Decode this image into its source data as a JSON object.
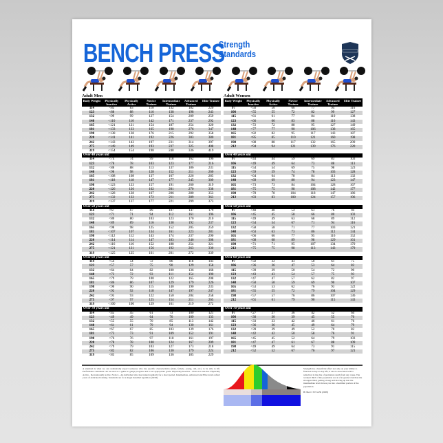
{
  "title": {
    "main": "BENCH PRESS",
    "sub_line1": "Strength",
    "sub_line2": "Standards",
    "color": "#1565d8"
  },
  "logo": {
    "text": "KILGORE",
    "color": "#1d3557"
  },
  "columns": [
    "Body Weight",
    "Physically Inactive",
    "Physically Active",
    "Novice Trainee",
    "Intermediate Trainee",
    "Advanced Trainee",
    "Elite Trainee"
  ],
  "men": {
    "title": "Adult Men",
    "sections": [
      {
        "label": "",
        "rows": [
          [
            "114",
            "<83",
            "83",
            "110",
            "132",
            "182",
            "220"
          ],
          [
            "123",
            "<88",
            "88",
            "116",
            "138",
            "198",
            "243"
          ],
          [
            "132",
            "<99",
            "99",
            "127",
            "154",
            "209",
            "259"
          ],
          [
            "148",
            "<110",
            "110",
            "142",
            "171",
            "237",
            "292"
          ],
          [
            "165",
            "<121",
            "121",
            "154",
            "187",
            "254",
            "320"
          ],
          [
            "181",
            "<133",
            "133",
            "165",
            "198",
            "276",
            "347"
          ],
          [
            "198",
            "<138",
            "138",
            "176",
            "215",
            "292",
            "358"
          ],
          [
            "220",
            "<141",
            "141",
            "192",
            "226",
            "303",
            "380"
          ],
          [
            "242",
            "<143",
            "143",
            "197",
            "231",
            "314",
            "397"
          ],
          [
            "275",
            "<149",
            "149",
            "193",
            "237",
            "325",
            "408"
          ],
          [
            "319",
            "<154",
            "154",
            "198",
            "248",
            "336",
            "419"
          ]
        ]
      },
      {
        "label": "Over 40 years old",
        "rows": [
          [
            "114",
            "<74",
            "74",
            "99",
            "118",
            "162",
            "196"
          ],
          [
            "123",
            "<78",
            "78",
            "103",
            "123",
            "177",
            "216"
          ],
          [
            "132",
            "<88",
            "88",
            "113",
            "137",
            "186",
            "231"
          ],
          [
            "148",
            "<98",
            "98",
            "128",
            "152",
            "211",
            "260"
          ],
          [
            "165",
            "<108",
            "108",
            "137",
            "167",
            "226",
            "285"
          ],
          [
            "181",
            "<118",
            "118",
            "147",
            "177",
            "245",
            "309"
          ],
          [
            "198",
            "<123",
            "123",
            "157",
            "191",
            "260",
            "319"
          ],
          [
            "220",
            "<126",
            "126",
            "162",
            "201",
            "270",
            "338"
          ],
          [
            "242",
            "<128",
            "128",
            "167",
            "206",
            "280",
            "353"
          ],
          [
            "275",
            "<132",
            "132",
            "172",
            "211",
            "289",
            "363"
          ],
          [
            "319",
            "<137",
            "137",
            "177",
            "221",
            "299",
            "373"
          ]
        ]
      },
      {
        "label": "Over 50 years old",
        "rows": [
          [
            "114",
            "<67",
            "67",
            "89",
            "107",
            "147",
            "179"
          ],
          [
            "123",
            "<71",
            "71",
            "94",
            "112",
            "161",
            "196"
          ],
          [
            "132",
            "<80",
            "80",
            "103",
            "123",
            "170",
            "210"
          ],
          [
            "148",
            "<89",
            "89",
            "116",
            "138",
            "192",
            "237"
          ],
          [
            "165",
            "<98",
            "98",
            "125",
            "152",
            "205",
            "259"
          ],
          [
            "181",
            "<107",
            "107",
            "134",
            "161",
            "223",
            "281"
          ],
          [
            "198",
            "<112",
            "112",
            "143",
            "174",
            "237",
            "290"
          ],
          [
            "220",
            "<114",
            "114",
            "147",
            "183",
            "246",
            "308"
          ],
          [
            "242",
            "<116",
            "116",
            "152",
            "188",
            "254",
            "321"
          ],
          [
            "275",
            "<121",
            "121",
            "156",
            "192",
            "263",
            "330"
          ],
          [
            "319",
            "<125",
            "125",
            "161",
            "201",
            "272",
            "339"
          ]
        ]
      },
      {
        "label": "Over 60 years old",
        "rows": [
          [
            "114",
            "<54",
            "54",
            "72",
            "86",
            "118",
            "143"
          ],
          [
            "123",
            "<57",
            "57",
            "75",
            "90",
            "129",
            "158"
          ],
          [
            "132",
            "<64",
            "64",
            "82",
            "100",
            "136",
            "168"
          ],
          [
            "148",
            "<72",
            "72",
            "93",
            "111",
            "154",
            "190"
          ],
          [
            "165",
            "<79",
            "79",
            "100",
            "122",
            "165",
            "208"
          ],
          [
            "181",
            "<86",
            "86",
            "107",
            "129",
            "179",
            "226"
          ],
          [
            "198",
            "<90",
            "90",
            "115",
            "140",
            "190",
            "233"
          ],
          [
            "220",
            "<92",
            "92",
            "118",
            "147",
            "197",
            "247"
          ],
          [
            "242",
            "<93",
            "93",
            "122",
            "150",
            "204",
            "258"
          ],
          [
            "275",
            "<97",
            "97",
            "125",
            "154",
            "211",
            "265"
          ],
          [
            "319",
            "<100",
            "100",
            "129",
            "161",
            "219",
            "272"
          ]
        ]
      },
      {
        "label": "Over 70 years old",
        "rows": [
          [
            "114",
            "<45",
            "45",
            "61",
            "73",
            "100",
            "121"
          ],
          [
            "123",
            "<49",
            "49",
            "64",
            "76",
            "109",
            "133"
          ],
          [
            "132",
            "<55",
            "55",
            "70",
            "85",
            "113",
            "142"
          ],
          [
            "148",
            "<61",
            "61",
            "79",
            "94",
            "130",
            "161"
          ],
          [
            "165",
            "<67",
            "67",
            "85",
            "103",
            "139",
            "176"
          ],
          [
            "181",
            "<73",
            "73",
            "91",
            "109",
            "152",
            "191"
          ],
          [
            "198",
            "<76",
            "76",
            "97",
            "118",
            "161",
            "197"
          ],
          [
            "220",
            "<78",
            "78",
            "100",
            "124",
            "167",
            "209"
          ],
          [
            "242",
            "<79",
            "79",
            "103",
            "127",
            "173",
            "218"
          ],
          [
            "275",
            "<82",
            "82",
            "106",
            "130",
            "179",
            "224"
          ],
          [
            "319",
            "<85",
            "85",
            "109",
            "136",
            "185",
            "229"
          ]
        ]
      }
    ]
  },
  "women": {
    "title": "Adult Women",
    "sections": [
      {
        "label": "",
        "rows": [
          [
            "97",
            "<50",
            "50",
            "66",
            "77",
            "94",
            "116"
          ],
          [
            "106",
            "<55",
            "55",
            "72",
            "82",
            "99",
            "127"
          ],
          [
            "115",
            "<61",
            "61",
            "77",
            "84",
            "110",
            "138"
          ],
          [
            "123",
            "<66",
            "66",
            "83",
            "88",
            "116",
            "143"
          ],
          [
            "132",
            "<72",
            "72",
            "88",
            "95",
            "127",
            "149"
          ],
          [
            "148",
            "<77",
            "77",
            "90",
            "106",
            "138",
            "165"
          ],
          [
            "165",
            "<82",
            "82",
            "95",
            "117",
            "143",
            "187"
          ],
          [
            "181",
            "<85",
            "85",
            "110",
            "121",
            "160",
            "198"
          ],
          [
            "198",
            "<88",
            "88",
            "117",
            "132",
            "165",
            "209"
          ],
          [
            "212",
            "<94",
            "94",
            "121",
            "139",
            "176",
            "220"
          ]
        ]
      },
      {
        "label": "Over 40 years old",
        "rows": [
          [
            "97",
            "<44",
            "44",
            "59",
            "69",
            "83",
            "103"
          ],
          [
            "106",
            "<49",
            "49",
            "64",
            "73",
            "88",
            "113"
          ],
          [
            "115",
            "<54",
            "54",
            "69",
            "75",
            "98",
            "123"
          ],
          [
            "123",
            "<59",
            "59",
            "74",
            "78",
            "103",
            "128"
          ],
          [
            "132",
            "<64",
            "64",
            "78",
            "84",
            "113",
            "132"
          ],
          [
            "148",
            "<69",
            "69",
            "80",
            "94",
            "123",
            "147"
          ],
          [
            "165",
            "<73",
            "73",
            "84",
            "104",
            "128",
            "167"
          ],
          [
            "181",
            "<75",
            "75",
            "98",
            "108",
            "142",
            "177"
          ],
          [
            "198",
            "<78",
            "78",
            "104",
            "118",
            "147",
            "186"
          ],
          [
            "212",
            "<83",
            "83",
            "108",
            "124",
            "157",
            "196"
          ]
        ]
      },
      {
        "label": "Over 50 years old",
        "rows": [
          [
            "97",
            "<40",
            "40",
            "54",
            "63",
            "76",
            "94"
          ],
          [
            "106",
            "<45",
            "45",
            "58",
            "66",
            "80",
            "103"
          ],
          [
            "115",
            "<49",
            "49",
            "63",
            "68",
            "89",
            "112"
          ],
          [
            "123",
            "<54",
            "54",
            "67",
            "71",
            "94",
            "116"
          ],
          [
            "132",
            "<58",
            "58",
            "71",
            "77",
            "103",
            "121"
          ],
          [
            "148",
            "<63",
            "63",
            "73",
            "86",
            "112",
            "134"
          ],
          [
            "165",
            "<66",
            "66",
            "77",
            "95",
            "116",
            "152"
          ],
          [
            "181",
            "<68",
            "68",
            "89",
            "98",
            "129",
            "161"
          ],
          [
            "198",
            "<71",
            "71",
            "95",
            "107",
            "134",
            "170"
          ],
          [
            "212",
            "<75",
            "75",
            "98",
            "113",
            "143",
            "179"
          ]
        ]
      },
      {
        "label": "Over 60 years old",
        "rows": [
          [
            "97",
            "<32",
            "32",
            "43",
            "50",
            "61",
            "75"
          ],
          [
            "106",
            "<36",
            "36",
            "47",
            "53",
            "64",
            "82"
          ],
          [
            "115",
            "<39",
            "39",
            "50",
            "54",
            "72",
            "90"
          ],
          [
            "123",
            "<43",
            "43",
            "54",
            "57",
            "75",
            "93"
          ],
          [
            "132",
            "<47",
            "47",
            "57",
            "62",
            "82",
            "97"
          ],
          [
            "148",
            "<50",
            "50",
            "59",
            "69",
            "90",
            "107"
          ],
          [
            "165",
            "<53",
            "53",
            "62",
            "76",
            "93",
            "122"
          ],
          [
            "181",
            "<55",
            "55",
            "72",
            "79",
            "104",
            "129"
          ],
          [
            "198",
            "<57",
            "57",
            "76",
            "86",
            "107",
            "136"
          ],
          [
            "212",
            "<61",
            "61",
            "79",
            "90",
            "115",
            "143"
          ]
        ]
      },
      {
        "label": "Over 70 years old",
        "rows": [
          [
            "97",
            "<27",
            "27",
            "36",
            "42",
            "52",
            "64"
          ],
          [
            "106",
            "<30",
            "30",
            "39",
            "45",
            "55",
            "70"
          ],
          [
            "115",
            "<33",
            "33",
            "42",
            "46",
            "61",
            "76"
          ],
          [
            "123",
            "<36",
            "36",
            "45",
            "49",
            "64",
            "79"
          ],
          [
            "132",
            "<39",
            "39",
            "49",
            "52",
            "70",
            "82"
          ],
          [
            "148",
            "<42",
            "42",
            "50",
            "58",
            "76",
            "91"
          ],
          [
            "165",
            "<45",
            "45",
            "52",
            "64",
            "79",
            "103"
          ],
          [
            "181",
            "<47",
            "47",
            "61",
            "67",
            "88",
            "109"
          ],
          [
            "198",
            "<49",
            "49",
            "64",
            "73",
            "91",
            "115"
          ],
          [
            "212",
            "<52",
            "52",
            "67",
            "76",
            "97",
            "121"
          ]
        ]
      }
    ]
  },
  "footer": {
    "left_text": "A standard is what we can realistically expect someone who has specific characteristics (male, female, young, old, etc.) to be able to lift. Performance standards can be used as a guide to gauge progress and to set appropriate goals. Physically Inactive - Does not exercise. Physically Active - Recreationally active. Novice - An individual who has trained regularly for a short period. Intermediate, Advanced and Elite levels reflect years of dedicated training. Standards are for a single maximal repetition (1RM).",
    "right_text": "Strength has a beneficial effect not only on your ability to function in day-to-day life, it also is associated with a reduction in the risk of premature death from any cause. The weakest third of the population are at a far greater risk than the strongest third; getting strong and moving up into the intermediate level moves you into a healthier portion of the population.",
    "citation": "Br Med J 337:a439 (2008)"
  },
  "curve_colors": [
    "#e8161b",
    "#f6e608",
    "#2ecc2e",
    "#1565d8",
    "#8a8a8a",
    "#000000"
  ]
}
